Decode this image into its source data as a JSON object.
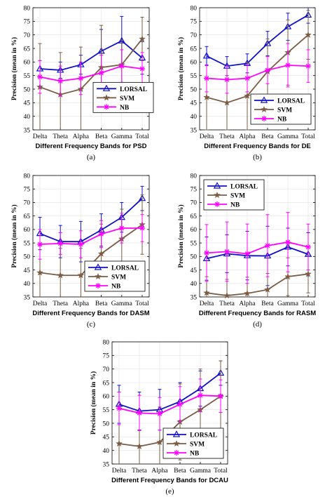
{
  "colors": {
    "LORSAL": "#1010c8",
    "SVM": "#7b5c44",
    "NB": "#ff00ff"
  },
  "chart_data": [
    {
      "type": "line",
      "panel": "(a)",
      "categories": [
        "Delta",
        "Theta",
        "Alpha",
        "Beta",
        "Gamma",
        "Total"
      ],
      "xlabel": "Different Frequency Bands for PSD",
      "ylabel": "Precision (mean in %)",
      "ylim": [
        35,
        80
      ],
      "yticks": [
        "35",
        "40",
        "45",
        "50",
        "55",
        "60",
        "65",
        "70",
        "75",
        "80"
      ],
      "legend_position": "center-right",
      "series": [
        {
          "name": "LORSAL",
          "values": [
            57.5,
            57.0,
            59.0,
            64.0,
            67.8,
            61.5
          ],
          "err": [
            3.0,
            3.0,
            3.5,
            8.0,
            9.0,
            6.0
          ]
        },
        {
          "name": "SVM",
          "values": [
            50.8,
            48.0,
            50.0,
            58.0,
            59.0,
            68.5
          ],
          "err": [
            16.0,
            15.5,
            15.5,
            15.5,
            9.0,
            8.0
          ]
        },
        {
          "name": "NB",
          "values": [
            54.5,
            53.0,
            54.0,
            56.0,
            58.5,
            57.5
          ],
          "err": [
            6.0,
            5.5,
            6.0,
            6.5,
            6.0,
            6.0
          ]
        }
      ]
    },
    {
      "type": "line",
      "panel": "(b)",
      "categories": [
        "Delta",
        "Theta",
        "Alpha",
        "Beta",
        "Gamma",
        "Total"
      ],
      "xlabel": "Different Frequency Bands for DE",
      "ylabel": "Precision (mean in %)",
      "ylim": [
        35,
        80
      ],
      "yticks": [
        "35",
        "40",
        "45",
        "50",
        "55",
        "60",
        "65",
        "70",
        "75",
        "80"
      ],
      "legend_position": "lower-right",
      "series": [
        {
          "name": "LORSAL",
          "values": [
            62.2,
            58.5,
            59.5,
            66.8,
            73.0,
            77.3
          ],
          "err": [
            3.5,
            3.5,
            3.5,
            4.5,
            5.0,
            3.0
          ]
        },
        {
          "name": "SVM",
          "values": [
            47.0,
            45.0,
            47.5,
            56.5,
            63.5,
            70.0
          ],
          "err": [
            12.0,
            10.0,
            12.5,
            12.0,
            12.0,
            9.0
          ]
        },
        {
          "name": "NB",
          "values": [
            54.0,
            53.5,
            54.0,
            57.0,
            58.8,
            58.5
          ],
          "err": [
            5.0,
            5.0,
            5.0,
            5.0,
            8.0,
            6.0
          ]
        }
      ]
    },
    {
      "type": "line",
      "panel": "(c)",
      "categories": [
        "Delta",
        "Theta",
        "Alpha",
        "Beta",
        "Gamma",
        "Total"
      ],
      "xlabel": "Different Frequency Bands for DASM",
      "ylabel": "Precision (mean in %)",
      "ylim": [
        35,
        80
      ],
      "yticks": [
        "35",
        "40",
        "45",
        "50",
        "55",
        "60",
        "65",
        "70",
        "75",
        "80"
      ],
      "legend_position": "lower-right",
      "series": [
        {
          "name": "LORSAL",
          "values": [
            58.5,
            55.5,
            55.5,
            59.8,
            64.5,
            71.5
          ],
          "err": [
            6.0,
            6.0,
            7.5,
            6.0,
            5.5,
            4.5
          ]
        },
        {
          "name": "SVM",
          "values": [
            44.0,
            43.0,
            43.0,
            51.0,
            56.5,
            61.8
          ],
          "err": [
            10.0,
            10.0,
            10.0,
            11.0,
            11.0,
            11.0
          ]
        },
        {
          "name": "NB",
          "values": [
            54.5,
            54.8,
            54.5,
            58.3,
            60.5,
            60.5
          ],
          "err": [
            5.5,
            4.0,
            5.0,
            5.0,
            5.5,
            5.0
          ]
        }
      ]
    },
    {
      "type": "line",
      "panel": "(d)",
      "categories": [
        "Delta",
        "Theta",
        "Alpha",
        "Beta",
        "Gamma",
        "Total"
      ],
      "xlabel": "Different Frequency Bands for RASM",
      "ylabel": "Precision (mean in %)",
      "ylim": [
        35,
        80
      ],
      "yticks": [
        "35",
        "40",
        "45",
        "50",
        "55",
        "60",
        "65",
        "70",
        "75",
        "80"
      ],
      "legend_position": "upper-left",
      "series": [
        {
          "name": "LORSAL",
          "values": [
            49.2,
            51.0,
            50.3,
            50.2,
            53.5,
            50.8
          ],
          "err": [
            8.0,
            7.0,
            9.0,
            11.0,
            7.0,
            8.0
          ]
        },
        {
          "name": "SVM",
          "values": [
            36.5,
            35.5,
            36.3,
            37.7,
            42.5,
            43.5
          ],
          "err": [
            6.0,
            6.0,
            6.0,
            6.0,
            7.0,
            7.0
          ]
        },
        {
          "name": "NB",
          "values": [
            51.3,
            51.8,
            51.0,
            54.0,
            55.3,
            53.5
          ],
          "err": [
            10.5,
            11.0,
            11.0,
            11.5,
            11.0,
            8.5
          ]
        }
      ]
    },
    {
      "type": "line",
      "panel": "(e)",
      "categories": [
        "Delta",
        "Theta",
        "Alpha",
        "Beta",
        "Gamma",
        "Total"
      ],
      "xlabel": "Different Frequency Bands for DCAU",
      "ylabel": "Precision (mean in %)",
      "ylim": [
        35,
        80
      ],
      "yticks": [
        "35",
        "40",
        "45",
        "50",
        "55",
        "60",
        "65",
        "70",
        "75",
        "80"
      ],
      "legend_position": "lower-right",
      "series": [
        {
          "name": "LORSAL",
          "values": [
            57.0,
            54.5,
            55.0,
            58.0,
            62.8,
            68.5
          ],
          "err": [
            7.0,
            7.0,
            7.5,
            7.0,
            6.5,
            4.5
          ]
        },
        {
          "name": "SVM",
          "values": [
            42.5,
            41.5,
            43.0,
            50.5,
            55.0,
            60.0
          ],
          "err": [
            14.0,
            13.0,
            13.0,
            14.0,
            15.0,
            13.0
          ]
        },
        {
          "name": "NB",
          "values": [
            55.5,
            53.8,
            53.5,
            57.0,
            60.3,
            60.0
          ],
          "err": [
            6.0,
            6.5,
            6.0,
            6.5,
            6.0,
            6.0
          ]
        }
      ]
    }
  ]
}
